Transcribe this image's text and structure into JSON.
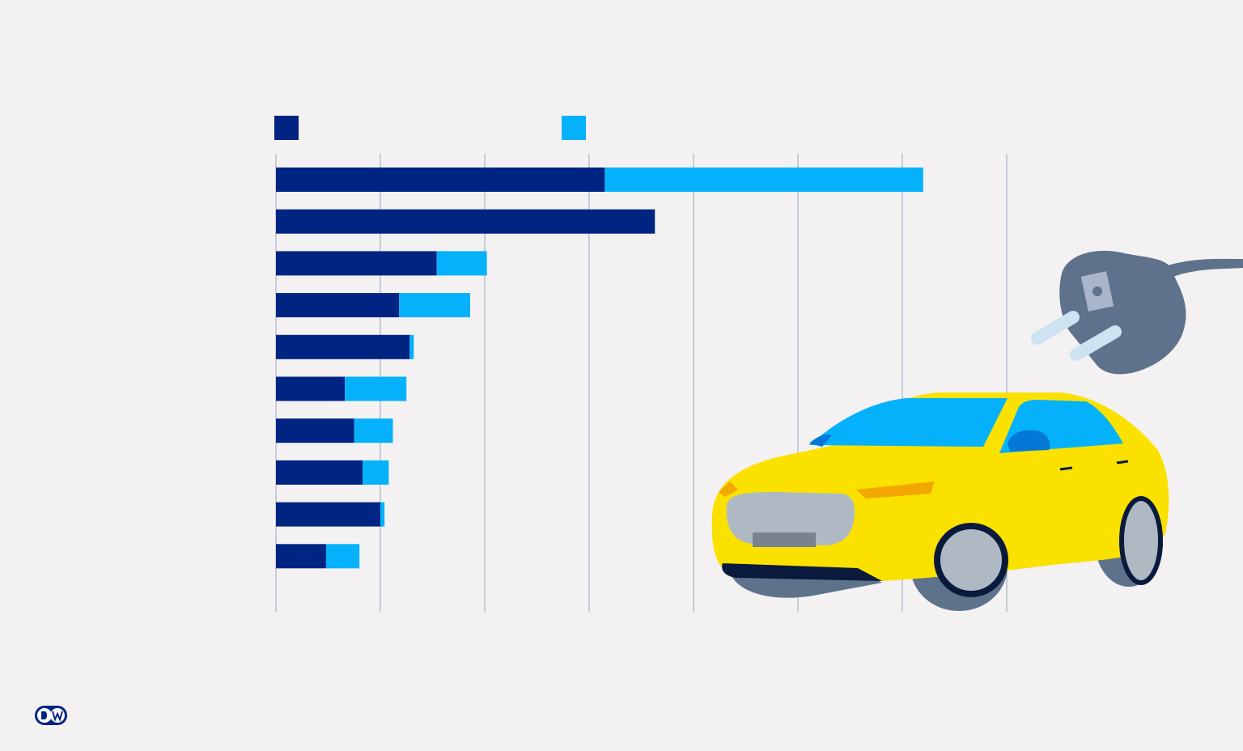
{
  "chart_data": {
    "type": "bar",
    "orientation": "horizontal",
    "stacked": true,
    "title": "",
    "xlabel": "",
    "ylabel": "",
    "categories": [
      "",
      "",
      "",
      "",
      "",
      "",
      "",
      "",
      "",
      ""
    ],
    "series": [
      {
        "color": "#002482",
        "values": [
          3.15,
          3.63,
          1.54,
          1.18,
          1.28,
          0.66,
          0.75,
          0.83,
          1.0,
          0.48
        ]
      },
      {
        "color": "#05b1fa",
        "values": [
          3.05,
          0,
          0.48,
          0.68,
          0.04,
          0.59,
          0.37,
          0.25,
          0.04,
          0.32
        ]
      }
    ],
    "xlim": [
      0,
      7
    ],
    "grid": true,
    "legend_position": "top-left"
  },
  "colors": {
    "background": "#f3f1f2",
    "gridline": "#a9b5c8",
    "series_dark": "#002482",
    "series_light": "#05b1fa",
    "car_body": "#fae100",
    "plug": "#5e728c"
  },
  "icons": {
    "car": "electric-car-illustration",
    "plug": "power-plug-illustration",
    "logo": "dw-logo"
  }
}
